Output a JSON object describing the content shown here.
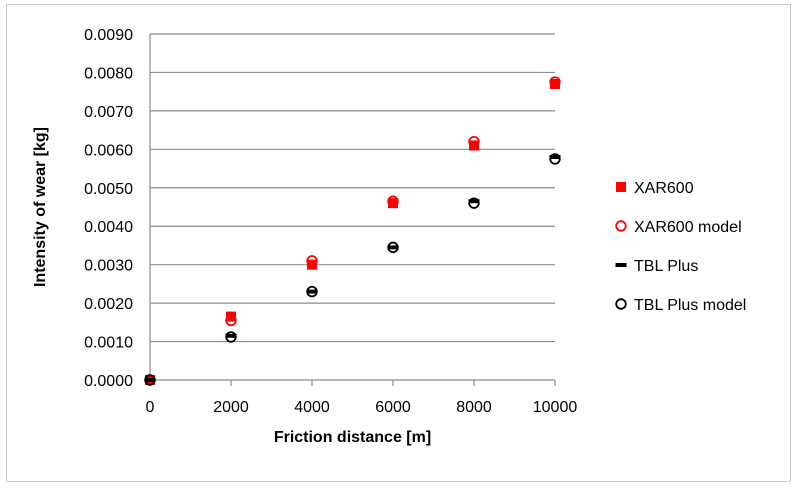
{
  "chart_data": {
    "type": "scatter",
    "title": "",
    "xlabel": "Friction distance [m]",
    "ylabel": "Intensity of wear  [kg]",
    "xlim": [
      0,
      10000
    ],
    "ylim": [
      0,
      0.009
    ],
    "x_ticks": [
      "0",
      "2000",
      "4000",
      "6000",
      "8000",
      "10000"
    ],
    "y_ticks": [
      "0.0000",
      "0.0010",
      "0.0020",
      "0.0030",
      "0.0040",
      "0.0050",
      "0.0060",
      "0.0070",
      "0.0080",
      "0.0090"
    ],
    "grid": "horizontal",
    "legend_position": "right",
    "series": [
      {
        "name": "XAR600",
        "marker": "filled-square",
        "color": "#ff0000",
        "x": [
          0,
          2000,
          4000,
          6000,
          8000,
          10000
        ],
        "y": [
          0.0,
          0.00165,
          0.003,
          0.0046,
          0.0061,
          0.0077
        ]
      },
      {
        "name": "XAR600 model",
        "marker": "open-circle",
        "color": "#ff0000",
        "x": [
          0,
          2000,
          4000,
          6000,
          8000,
          10000
        ],
        "y": [
          0.0,
          0.00155,
          0.0031,
          0.00465,
          0.0062,
          0.00775
        ]
      },
      {
        "name": "TBL Plus",
        "marker": "dash",
        "color": "#000000",
        "x": [
          0,
          2000,
          4000,
          6000,
          8000,
          10000
        ],
        "y": [
          0.0,
          0.00115,
          0.0023,
          0.00345,
          0.00465,
          0.0058
        ]
      },
      {
        "name": "TBL Plus model",
        "marker": "open-circle",
        "color": "#000000",
        "x": [
          0,
          2000,
          4000,
          6000,
          8000,
          10000
        ],
        "y": [
          0.0,
          0.00112,
          0.0023,
          0.00345,
          0.0046,
          0.00575
        ]
      }
    ]
  }
}
